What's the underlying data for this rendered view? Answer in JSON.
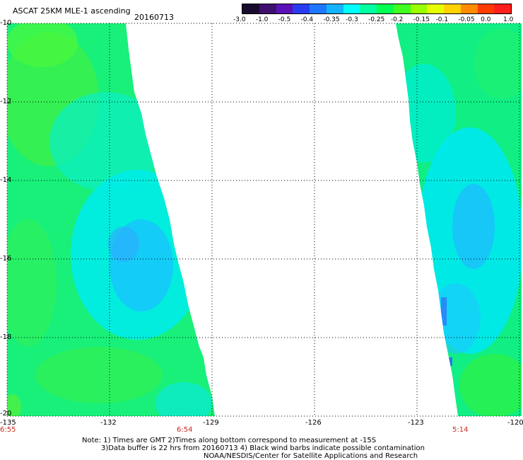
{
  "header": {
    "title": "ASCAT 25KM MLE-1 ascending",
    "date": "20160713"
  },
  "colorbar": {
    "labels": [
      "-3.0",
      "-1.0",
      "-0.5",
      "-0.4",
      "-0.35",
      "-0.3",
      "-0.25",
      "-0.2",
      "-0.15",
      "-0.1",
      "-0.05",
      "0.0",
      "1.0"
    ],
    "colors": [
      "#1a0a2e",
      "#3d0f6e",
      "#5a12b8",
      "#2a3cf0",
      "#1e78ff",
      "#12b4ff",
      "#00ffff",
      "#00ffa0",
      "#00ff50",
      "#40ff20",
      "#9aff00",
      "#e6ff00",
      "#ffd200",
      "#ff8c00",
      "#ff3c00",
      "#ff1e1e"
    ]
  },
  "axes": {
    "x_ticks": [
      "-135",
      "-132",
      "-129",
      "-126",
      "-123",
      "-120"
    ],
    "y_ticks": [
      "-10",
      "-12",
      "-14",
      "-16",
      "-18",
      "-20"
    ]
  },
  "times": [
    "6:55",
    "6:54",
    "5:14"
  ],
  "notes": [
    "Note: 1) Times are GMT 2)Times along bottom correspond to measurement at -15S",
    "3)Data buffer is 22 hrs from 20160713 4) Black wind barbs indicate possible contamination",
    "NOAA/NESDIS/Center for Satellite Applications and Research"
  ]
}
